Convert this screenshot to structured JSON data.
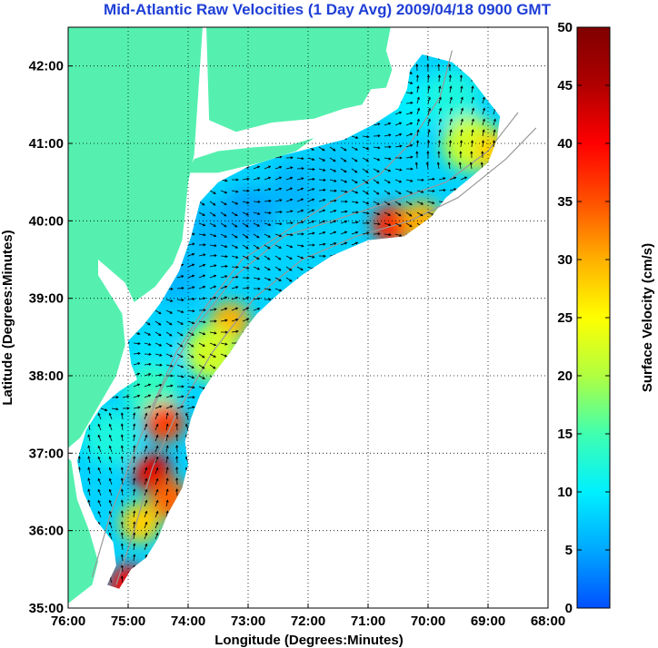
{
  "title": "Mid-Atlantic Raw Velocities (1 Day Avg) 2009/04/18 0900 GMT",
  "chart_data": {
    "type": "heatmap",
    "xlabel": "Longitude (Degrees:Minutes)",
    "ylabel": "Latitude (Degrees:Minutes)",
    "xlim": [
      -76,
      -68
    ],
    "ylim": [
      35,
      42.5
    ],
    "x_ticks": [
      {
        "value": -76,
        "label": "76:00"
      },
      {
        "value": -75,
        "label": "75:00"
      },
      {
        "value": -74,
        "label": "74:00"
      },
      {
        "value": -73,
        "label": "73:00"
      },
      {
        "value": -72,
        "label": "72:00"
      },
      {
        "value": -71,
        "label": "71:00"
      },
      {
        "value": -70,
        "label": "70:00"
      },
      {
        "value": -69,
        "label": "69:00"
      },
      {
        "value": -68,
        "label": "68:00"
      }
    ],
    "y_ticks": [
      {
        "value": 35,
        "label": "35:00"
      },
      {
        "value": 36,
        "label": "36:00"
      },
      {
        "value": 37,
        "label": "37:00"
      },
      {
        "value": 38,
        "label": "38:00"
      },
      {
        "value": 39,
        "label": "39:00"
      },
      {
        "value": 40,
        "label": "40:00"
      },
      {
        "value": 41,
        "label": "41:00"
      },
      {
        "value": 42,
        "label": "42:00"
      }
    ],
    "grid": true,
    "colorbar": {
      "label": "Surface Velocity (cm/s)",
      "range": [
        0,
        50
      ],
      "ticks": [
        {
          "value": 0,
          "label": "0"
        },
        {
          "value": 5,
          "label": "5"
        },
        {
          "value": 10,
          "label": "10"
        },
        {
          "value": 15,
          "label": "15"
        },
        {
          "value": 20,
          "label": "20"
        },
        {
          "value": 25,
          "label": "25"
        },
        {
          "value": 30,
          "label": "30"
        },
        {
          "value": 35,
          "label": "35"
        },
        {
          "value": 40,
          "label": "40"
        },
        {
          "value": 45,
          "label": "45"
        },
        {
          "value": 50,
          "label": "50"
        }
      ],
      "colormap": [
        "#0050ff",
        "#00a8ff",
        "#00f0ff",
        "#40ffb0",
        "#b0ff40",
        "#ffff00",
        "#ffb000",
        "#ff5000",
        "#ff0000",
        "#b00000",
        "#800000"
      ]
    },
    "land_color": "#55f0b0",
    "water_color": "#ffffff",
    "velocity_field": [
      {
        "lon": -74.6,
        "lat": 38.2,
        "speed": 9
      },
      {
        "lon": -74.2,
        "lat": 39.3,
        "speed": 6
      },
      {
        "lon": -73.6,
        "lat": 39.9,
        "speed": 6
      },
      {
        "lon": -73.0,
        "lat": 40.1,
        "speed": 5
      },
      {
        "lon": -72.2,
        "lat": 40.4,
        "speed": 6
      },
      {
        "lon": -71.6,
        "lat": 40.6,
        "speed": 7
      },
      {
        "lon": -70.8,
        "lat": 40.9,
        "speed": 8
      },
      {
        "lon": -70.2,
        "lat": 41.5,
        "speed": 10
      },
      {
        "lon": -69.6,
        "lat": 41.6,
        "speed": 12
      },
      {
        "lon": -69.3,
        "lat": 41.0,
        "speed": 22
      },
      {
        "lon": -68.9,
        "lat": 40.9,
        "speed": 28
      },
      {
        "lon": -70.6,
        "lat": 39.95,
        "speed": 38
      },
      {
        "lon": -70.1,
        "lat": 40.0,
        "speed": 30
      },
      {
        "lon": -73.3,
        "lat": 38.7,
        "speed": 30
      },
      {
        "lon": -73.6,
        "lat": 38.3,
        "speed": 22
      },
      {
        "lon": -74.6,
        "lat": 37.8,
        "speed": 14
      },
      {
        "lon": -75.3,
        "lat": 37.2,
        "speed": 12
      },
      {
        "lon": -74.6,
        "lat": 36.75,
        "speed": 42
      },
      {
        "lon": -74.3,
        "lat": 36.4,
        "speed": 34
      },
      {
        "lon": -74.8,
        "lat": 36.1,
        "speed": 28
      },
      {
        "lon": -74.4,
        "lat": 37.4,
        "speed": 36
      },
      {
        "lon": -75.0,
        "lat": 35.3,
        "speed": 40
      }
    ]
  }
}
